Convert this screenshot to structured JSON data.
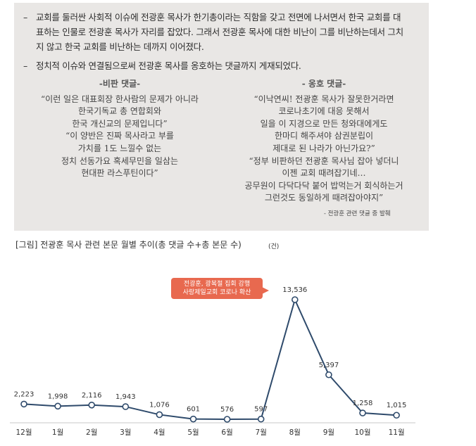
{
  "bullets": [
    {
      "dash": "–",
      "lines": [
        "교회를 둘러싼 사회적 이슈에 전광훈 목사가 한기총이라는 직함을 갖고 전면에 나서면서 한국 교회를 대",
        "표하는 인물로 전광훈 목사가 자리를 잡았다. 그래서 전광훈 목사에 대한 비난이 그를 비난하는데서 그치",
        "지 않고 한국 교회를 비난하는 데까지 이어졌다."
      ]
    },
    {
      "dash": "–",
      "lines": [
        "정치적 이슈와 연결됨으로써 전광훈 목사를 옹호하는 댓글까지 게재되었다."
      ]
    }
  ],
  "criticism": {
    "heading": "-비판 댓글-",
    "lines": [
      "“이런 일은 대표회장 한사람의 문제가 아니라",
      "한국기독교 총 연합회와",
      "한국 개신교의 문제입니다”",
      "“이 양반은 진짜 목사라고 부를",
      "가치를 1도 느낄수 없는",
      "정치 선동가요 혹세무민을 일삼는",
      "현대판 라스푸틴이다”"
    ]
  },
  "support": {
    "heading": "- 옹호 댓글-",
    "lines": [
      "“이낙연씨! 전광훈 목사가 잘못한거라면",
      "코로나초기에 대응 못해서",
      "일을 이 지경으로 만든 청와대에게도",
      "한마디 해주셔야 삼권분립이",
      "제대로 된 나라가 아닌가요?”",
      "“정부  비판하던 전광훈 목사님 잡아 넣더니",
      "이젠 교회 때려잡기네…",
      "공무원이 다닥다닥 붙어 밥먹는거 회식하는거",
      "그런것도 동일하게 때려잡아야지”"
    ]
  },
  "credit": "- 전광훈 관련 댓글 중 발췌",
  "chart_title": "[그림] 전광훈 목사 관련 본문 월별 추이(총 댓글 수+총 본문 수)",
  "unit": "(건)",
  "callout": [
    "전광훈, 광복절 집회 강행",
    "사랑제일교회 코로나 확산"
  ],
  "chart_data": {
    "type": "line",
    "categories": [
      "12월",
      "1월",
      "2월",
      "3월",
      "4월",
      "5월",
      "6월",
      "7월",
      "8월",
      "9월",
      "10월",
      "11월"
    ],
    "labels": [
      "2,223",
      "1,998",
      "2,116",
      "1,943",
      "1,076",
      "601",
      "576",
      "597",
      "13,536",
      "5,397",
      "1,258",
      "1,015"
    ],
    "values": [
      2223,
      1998,
      2116,
      1943,
      1076,
      601,
      576,
      597,
      13536,
      5397,
      1258,
      1015
    ],
    "line_color": "#2e4a6b",
    "ylim": [
      0,
      14000
    ]
  }
}
